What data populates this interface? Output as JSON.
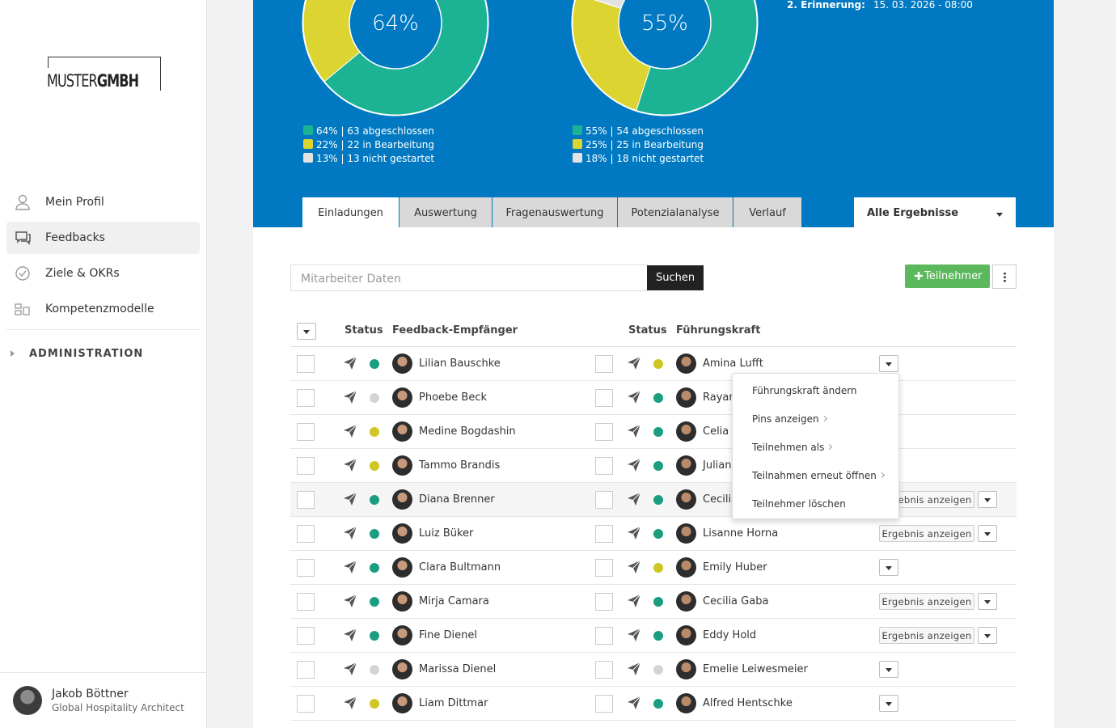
{
  "sidebar": {
    "logo": {
      "light": "MUSTER",
      "bold": "GMBH"
    },
    "nav": [
      {
        "label": "Mein Profil",
        "icon": "user"
      },
      {
        "label": "Feedbacks",
        "icon": "chat",
        "active": true
      },
      {
        "label": "Ziele & OKRs",
        "icon": "check"
      },
      {
        "label": "Kompetenzmodelle",
        "icon": "grid"
      }
    ],
    "admin": "ADMINISTRATION",
    "user": {
      "name": "Jakob Böttner",
      "role": "Global Hospitality Architect"
    }
  },
  "header": {
    "donuts": [
      {
        "center": "64%",
        "segments": [
          {
            "percent": 64,
            "label": "64% | 63 abgeschlossen",
            "color": "#1bb394"
          },
          {
            "percent": 22,
            "label": "22% | 22 in Bearbeitung",
            "color": "#dcd431"
          },
          {
            "percent": 13,
            "label": "13% | 13 nicht gestartet",
            "color": "#e3e3e3"
          }
        ]
      },
      {
        "center": "55%",
        "segments": [
          {
            "percent": 55,
            "label": "55% | 54 abgeschlossen",
            "color": "#1bb394"
          },
          {
            "percent": 25,
            "label": "25% | 25 in Bearbeitung",
            "color": "#dcd431"
          },
          {
            "percent": 18,
            "label": "18% | 18 nicht gestartet",
            "color": "#e3e3e3"
          }
        ]
      }
    ],
    "reminder": {
      "label": "2. Erinnerung:",
      "value": "15. 03. 2026 - 08:00"
    }
  },
  "tabs": [
    "Einladungen",
    "Auswertung",
    "Fragenauswertung",
    "Potenzialanalyse",
    "Verlauf"
  ],
  "active_tab": 0,
  "filter": "Alle Ergebnisse",
  "search": {
    "placeholder": "Mitarbeiter Daten",
    "button": "Suchen"
  },
  "add_button": "Teilnehmer",
  "table": {
    "columns": [
      "Status",
      "Feedback-Empfänger",
      "Status",
      "Führungskraft"
    ],
    "status_colors": {
      "done": "#1a9e80",
      "progress": "#cfc624",
      "none": "#d4d4d4"
    },
    "rows": [
      {
        "recipient": "Lilian Bauschke",
        "status": "done",
        "manager": "Amina Lufft",
        "manager_status": "progress"
      },
      {
        "recipient": "Phoebe Beck",
        "status": "none",
        "manager": "Rayan",
        "manager_status": "done"
      },
      {
        "recipient": "Medine Bogdashin",
        "status": "progress",
        "manager": "Celia M",
        "manager_status": "done"
      },
      {
        "recipient": "Tammo Brandis",
        "status": "progress",
        "manager": "Julian S",
        "manager_status": "done"
      },
      {
        "recipient": "Diana Brenner",
        "status": "done",
        "manager": "Cecilia",
        "manager_status": "done",
        "result_button": "Ergebnis anzeigen",
        "highlight": true
      },
      {
        "recipient": "Luiz Büker",
        "status": "done",
        "manager": "Lisanne Horna",
        "manager_status": "done",
        "result_button": "Ergebnis anzeigen"
      },
      {
        "recipient": "Clara Bultmann",
        "status": "done",
        "manager": "Emily Huber",
        "manager_status": "progress"
      },
      {
        "recipient": "Mirja Camara",
        "status": "done",
        "manager": "Cecilia Gaba",
        "manager_status": "done",
        "result_button": "Ergebnis anzeigen"
      },
      {
        "recipient": "Fine Dienel",
        "status": "done",
        "manager": "Eddy Hold",
        "manager_status": "done",
        "result_button": "Ergebnis anzeigen"
      },
      {
        "recipient": "Marissa Dienel",
        "status": "none",
        "manager": "Emelie Leiwesmeier",
        "manager_status": "none"
      },
      {
        "recipient": "Liam Dittmar",
        "status": "progress",
        "manager": "Alfred Hentschke",
        "manager_status": "done"
      }
    ]
  },
  "menu": {
    "row": 0,
    "items": [
      {
        "label": "Führungskraft ändern"
      },
      {
        "label": "Pins anzeigen",
        "submenu": true
      },
      {
        "label": "Teilnehmen als",
        "submenu": true
      },
      {
        "label": "Teilnahmen erneut öffnen",
        "submenu": true
      },
      {
        "label": "Teilnehmer löschen"
      }
    ]
  }
}
